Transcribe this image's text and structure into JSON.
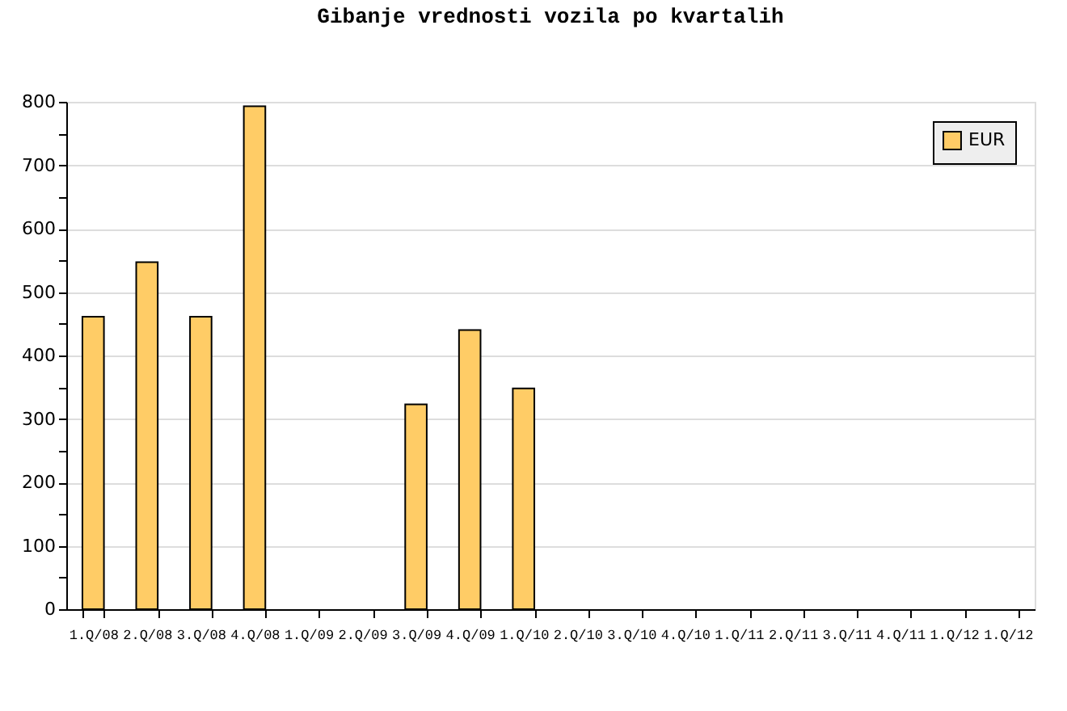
{
  "chart_data": {
    "type": "bar",
    "title": "Gibanje vrednosti vozila po kvartalih",
    "categories": [
      "1.Q/08",
      "2.Q/08",
      "3.Q/08",
      "4.Q/08",
      "1.Q/09",
      "2.Q/09",
      "3.Q/09",
      "4.Q/09",
      "1.Q/10",
      "2.Q/10",
      "3.Q/10",
      "4.Q/10",
      "1.Q/11",
      "2.Q/11",
      "3.Q/11",
      "4.Q/11",
      "1.Q/12",
      "1.Q/12"
    ],
    "series": [
      {
        "name": "EUR",
        "color": "#ffcc66",
        "values": [
          461,
          547,
          461,
          793,
          null,
          null,
          323,
          440,
          348,
          null,
          null,
          null,
          null,
          null,
          null,
          null,
          null,
          null
        ]
      }
    ],
    "ylim": [
      0,
      800
    ],
    "yticks": [
      0,
      {
        "value": 50,
        "label": null
      },
      100,
      {
        "value": 150,
        "label": null
      },
      200,
      {
        "value": 250,
        "label": null
      },
      300,
      {
        "value": 350,
        "label": null
      },
      400,
      {
        "value": 450,
        "label": null
      },
      500,
      {
        "value": 550,
        "label": null
      },
      600,
      {
        "value": 650,
        "label": null
      },
      700,
      {
        "value": 750,
        "label": null
      },
      800
    ],
    "grid": "y",
    "legend": "top right"
  }
}
